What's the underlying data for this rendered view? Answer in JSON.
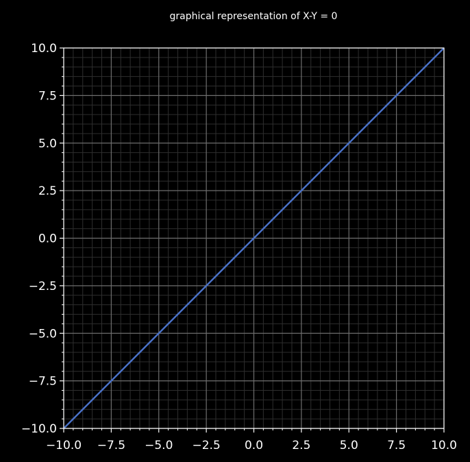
{
  "chart_data": {
    "type": "line",
    "title": "graphical representation of X-Y = 0",
    "xlabel": "",
    "ylabel": "",
    "xlim": [
      -10,
      10
    ],
    "ylim": [
      -10,
      10
    ],
    "grid": true,
    "minor_grid": true,
    "legend": false,
    "xticks": [
      -10,
      -7.5,
      -5,
      -2.5,
      0,
      2.5,
      5,
      7.5,
      10
    ],
    "yticks": [
      -10,
      -7.5,
      -5,
      -2.5,
      0,
      2.5,
      5,
      7.5,
      10
    ],
    "xtick_labels": [
      "−10.0",
      "−7.5",
      "−5.0",
      "−2.5",
      "0.0",
      "2.5",
      "5.0",
      "7.5",
      "10.0"
    ],
    "ytick_labels": [
      "−10.0",
      "−7.5",
      "−5.0",
      "−2.5",
      "0.0",
      "2.5",
      "5.0",
      "7.5",
      "10.0"
    ],
    "series": [
      {
        "x": [
          -10,
          10
        ],
        "y": [
          -10,
          10
        ]
      }
    ]
  },
  "colors": {
    "background": "#000000",
    "axes_spine": "#ffffff",
    "major_grid": "#6e6e6e",
    "minor_grid": "#2e2e2e",
    "text": "#ffffff",
    "series_line": "#4a72c8"
  }
}
